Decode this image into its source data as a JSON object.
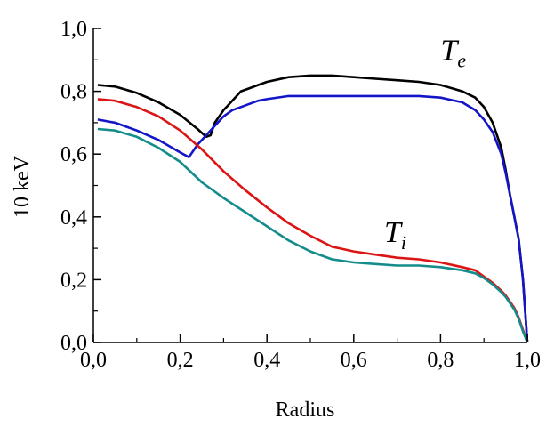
{
  "chart_data": {
    "type": "line",
    "xlabel": "Radius",
    "ylabel": "10 keV",
    "xlim": [
      0.0,
      1.0
    ],
    "ylim": [
      0.0,
      1.0
    ],
    "x_ticks": [
      "0,0",
      "0,2",
      "0,4",
      "0,6",
      "0,8",
      "1,0"
    ],
    "y_ticks": [
      "0,0",
      "0,2",
      "0,4",
      "0,6",
      "0,8",
      "1,0"
    ],
    "grid": false,
    "annotations": [
      {
        "text": "T",
        "sub": "e",
        "x": 0.8,
        "y": 0.9
      },
      {
        "text": "T",
        "sub": "i",
        "x": 0.67,
        "y": 0.32
      }
    ],
    "series": [
      {
        "color": "#000000",
        "x": [
          0.01,
          0.05,
          0.1,
          0.15,
          0.2,
          0.24,
          0.26,
          0.27,
          0.28,
          0.3,
          0.32,
          0.34,
          0.36,
          0.38,
          0.4,
          0.45,
          0.5,
          0.55,
          0.6,
          0.65,
          0.7,
          0.75,
          0.8,
          0.85,
          0.88,
          0.9,
          0.92,
          0.94,
          0.95,
          0.96,
          0.97,
          0.98,
          0.99,
          1.0
        ],
        "y": [
          0.82,
          0.815,
          0.795,
          0.765,
          0.725,
          0.68,
          0.655,
          0.66,
          0.7,
          0.74,
          0.77,
          0.8,
          0.81,
          0.82,
          0.83,
          0.845,
          0.85,
          0.85,
          0.845,
          0.84,
          0.835,
          0.83,
          0.82,
          0.8,
          0.78,
          0.75,
          0.7,
          0.62,
          0.55,
          0.47,
          0.4,
          0.33,
          0.2,
          0.0
        ]
      },
      {
        "color": "#1414c8",
        "x": [
          0.01,
          0.05,
          0.1,
          0.15,
          0.2,
          0.22,
          0.24,
          0.26,
          0.28,
          0.3,
          0.32,
          0.34,
          0.36,
          0.38,
          0.4,
          0.45,
          0.5,
          0.55,
          0.6,
          0.65,
          0.7,
          0.75,
          0.8,
          0.85,
          0.88,
          0.9,
          0.92,
          0.94,
          0.95,
          0.96,
          0.97,
          0.98,
          0.99,
          1.0
        ],
        "y": [
          0.71,
          0.7,
          0.675,
          0.645,
          0.605,
          0.59,
          0.63,
          0.66,
          0.69,
          0.72,
          0.74,
          0.75,
          0.76,
          0.77,
          0.775,
          0.785,
          0.785,
          0.785,
          0.785,
          0.785,
          0.785,
          0.785,
          0.78,
          0.765,
          0.74,
          0.71,
          0.67,
          0.6,
          0.54,
          0.47,
          0.4,
          0.33,
          0.2,
          0.0
        ]
      },
      {
        "color": "#dc1414",
        "x": [
          0.01,
          0.05,
          0.1,
          0.15,
          0.2,
          0.25,
          0.3,
          0.35,
          0.4,
          0.45,
          0.5,
          0.55,
          0.6,
          0.65,
          0.7,
          0.75,
          0.8,
          0.85,
          0.88,
          0.9,
          0.92,
          0.94,
          0.95,
          0.96,
          0.97,
          0.98,
          0.99,
          1.0
        ],
        "y": [
          0.775,
          0.77,
          0.75,
          0.72,
          0.675,
          0.615,
          0.545,
          0.485,
          0.43,
          0.38,
          0.34,
          0.305,
          0.29,
          0.28,
          0.27,
          0.265,
          0.255,
          0.24,
          0.23,
          0.21,
          0.19,
          0.165,
          0.15,
          0.13,
          0.11,
          0.08,
          0.04,
          0.0
        ]
      },
      {
        "color": "#148c8c",
        "x": [
          0.01,
          0.05,
          0.1,
          0.15,
          0.2,
          0.25,
          0.3,
          0.35,
          0.4,
          0.45,
          0.5,
          0.55,
          0.6,
          0.65,
          0.7,
          0.75,
          0.8,
          0.85,
          0.88,
          0.9,
          0.92,
          0.94,
          0.95,
          0.96,
          0.97,
          0.98,
          0.99,
          1.0
        ],
        "y": [
          0.68,
          0.675,
          0.655,
          0.62,
          0.575,
          0.51,
          0.46,
          0.415,
          0.37,
          0.325,
          0.29,
          0.265,
          0.255,
          0.25,
          0.245,
          0.245,
          0.24,
          0.23,
          0.22,
          0.205,
          0.185,
          0.16,
          0.145,
          0.125,
          0.105,
          0.075,
          0.035,
          0.0
        ]
      }
    ]
  }
}
